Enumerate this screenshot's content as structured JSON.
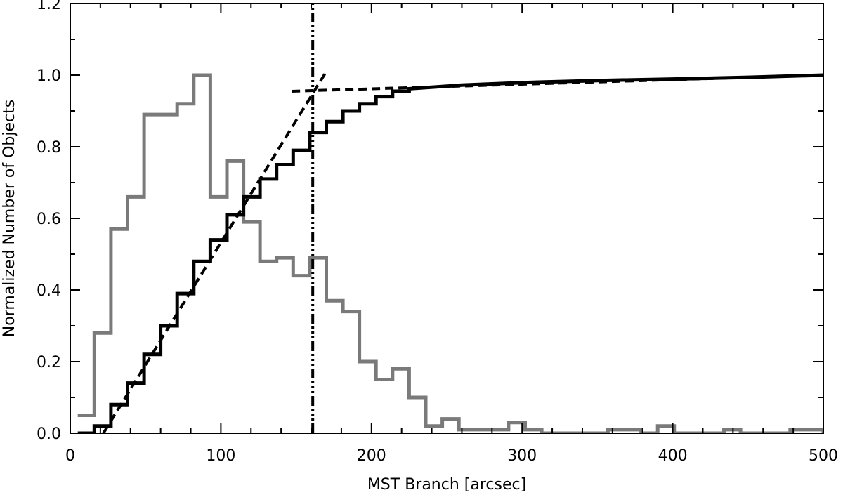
{
  "chart_data": {
    "type": "line",
    "xlabel": "MST Branch [arcsec]",
    "ylabel": "Normalized Number of Objects",
    "xlim": [
      0,
      500
    ],
    "ylim": [
      0,
      1.2
    ],
    "x_ticks": [
      0,
      100,
      200,
      300,
      400,
      500
    ],
    "y_ticks": [
      0.0,
      0.2,
      0.4,
      0.6,
      0.8,
      1.0,
      1.2
    ],
    "grid": false,
    "legend": "none",
    "bin_width": 11,
    "colors": {
      "cumulative": "#000000",
      "histogram": "#7a7a7a",
      "fit": "#000000",
      "cut": "#000000"
    },
    "series": [
      {
        "style": "step-gray",
        "bin_start": 5,
        "values": [
          0.05,
          0.28,
          0.57,
          0.66,
          0.89,
          0.89,
          0.92,
          1.0,
          0.66,
          0.76,
          0.59,
          0.48,
          0.49,
          0.44,
          0.49,
          0.37,
          0.34,
          0.2,
          0.15,
          0.18,
          0.1,
          0.02,
          0.04,
          0.01,
          0.01,
          0.01,
          0.03,
          0.01,
          0.0,
          0.0,
          0.0,
          0.0,
          0.01,
          0.01,
          0.0,
          0.02,
          0.0,
          0.0,
          0.0,
          0.01,
          0.0,
          0.0,
          0.0,
          0.01,
          0.01,
          0.0,
          0.01,
          0.02,
          0.01,
          0.0,
          0.01,
          0.0,
          0.0,
          0.01,
          0.0
        ]
      },
      {
        "style": "step-black",
        "bin_start": 5,
        "values": [
          0.0,
          0.02,
          0.08,
          0.14,
          0.22,
          0.3,
          0.39,
          0.48,
          0.54,
          0.61,
          0.66,
          0.71,
          0.75,
          0.79,
          0.84,
          0.87,
          0.9,
          0.92,
          0.94,
          0.955
        ],
        "tail_x": [
          225,
          260,
          300,
          350,
          400,
          450,
          500
        ],
        "tail_y": [
          0.962,
          0.972,
          0.979,
          0.985,
          0.989,
          0.994,
          1.0
        ]
      },
      {
        "style": "dashed-fit-steep",
        "x": [
          22,
          170
        ],
        "y": [
          0.0,
          1.01
        ]
      },
      {
        "style": "dashed-fit-flat",
        "x": [
          147,
          500
        ],
        "y": [
          0.955,
          1.0
        ]
      },
      {
        "style": "dash-dot-vertical",
        "x": [
          161,
          161
        ],
        "y": [
          0,
          1.2
        ]
      }
    ]
  }
}
